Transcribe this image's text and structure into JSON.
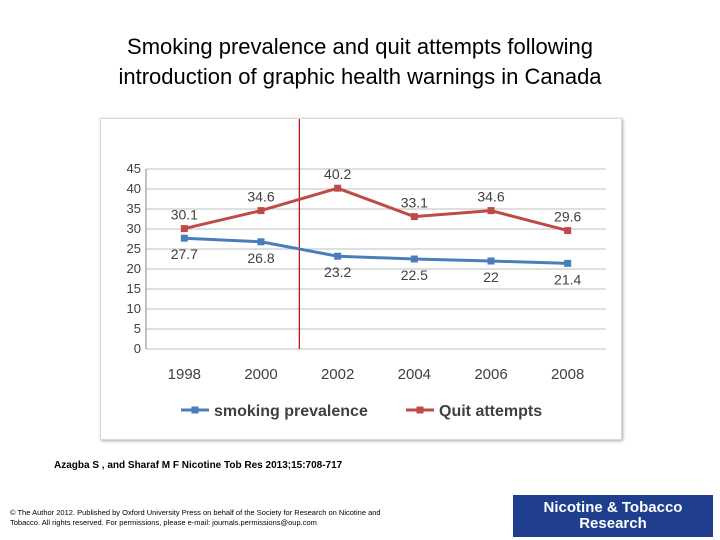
{
  "slide": {
    "title_line1": "Smoking prevalence and quit attempts following",
    "title_line2": "introduction of graphic health warnings in Canada",
    "citation": "Azagba S , and Sharaf M F Nicotine Tob Res 2013;15:708-717",
    "copyright": "© The Author 2012. Published by Oxford University Press on behalf of the Society for Research on Nicotine and Tobacco. All rights reserved. For permissions, please e-mail: journals.permissions@oup.com",
    "logo_line1": "Nicotine & Tobacco",
    "logo_line2": "Research"
  },
  "chart_data": {
    "type": "line",
    "categories": [
      "1998",
      "2000",
      "2002",
      "2004",
      "2006",
      "2008"
    ],
    "series": [
      {
        "name": "smoking prevalence",
        "values": [
          27.7,
          26.8,
          23.2,
          22.5,
          22,
          21.4
        ],
        "color": "#4a7ebb",
        "label_position": "below"
      },
      {
        "name": "Quit attempts",
        "values": [
          30.1,
          34.6,
          40.2,
          33.1,
          34.6,
          29.6
        ],
        "color": "#be4b48",
        "label_position": "above"
      }
    ],
    "y_ticks": [
      "0",
      "5",
      "10",
      "15",
      "20",
      "25",
      "30",
      "35",
      "40",
      "45"
    ],
    "ylim": [
      0,
      45
    ],
    "grid": true,
    "legend_position": "bottom",
    "marker_line": {
      "between": [
        "2000",
        "2002"
      ],
      "color": "#c00000"
    }
  }
}
